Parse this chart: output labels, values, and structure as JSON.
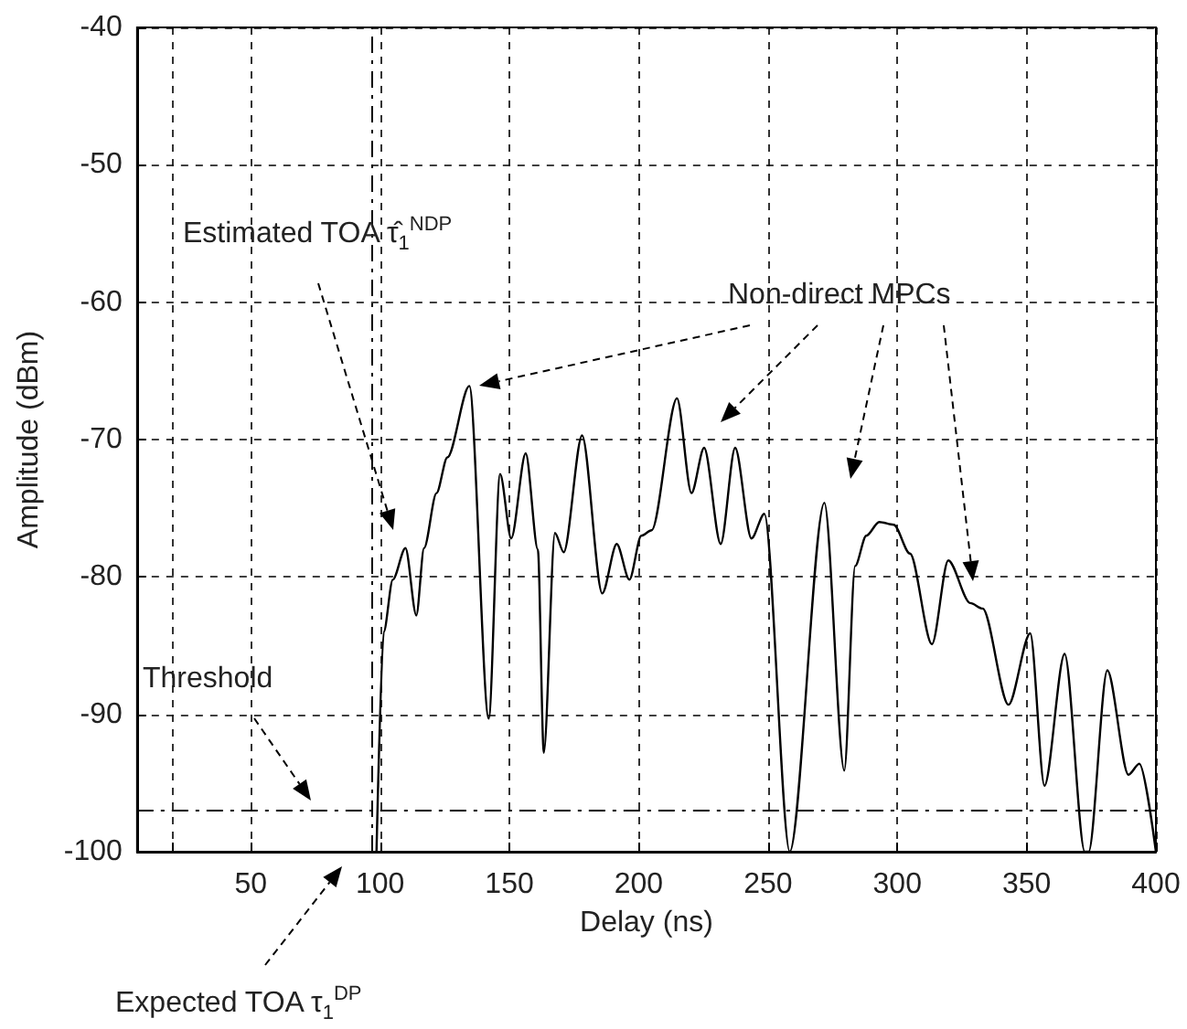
{
  "chart_data": {
    "type": "line",
    "xlabel": "Delay (ns)",
    "ylabel": "Amplitude (dBm)",
    "x": [
      98.6,
      101.4,
      104.9,
      109.8,
      114,
      117,
      121.8,
      126,
      134.5,
      142,
      146.4,
      150.7,
      156.3,
      161,
      163.3,
      167.6,
      171,
      178.1,
      185.9,
      191.5,
      196.4,
      201,
      205,
      214.8,
      220.4,
      225.3,
      231.7,
      237.3,
      243.6,
      248.6,
      258.4,
      271.8,
      279.5,
      283.7,
      288,
      293,
      298.6,
      304.9,
      313.4,
      319.7,
      328.2,
      333,
      343,
      351.4,
      356.9,
      364.7,
      372.5,
      374,
      381.2,
      389.4,
      393.6,
      400
    ],
    "series": [
      {
        "color": "#000000",
        "values": [
          -100,
          -84,
          -80.2,
          -77.9,
          -82.8,
          -77.9,
          -73.9,
          -71.3,
          -66.1,
          -90.3,
          -72.5,
          -77.2,
          -71,
          -78,
          -92.8,
          -76.8,
          -78.2,
          -69.7,
          -81.2,
          -77.6,
          -80.2,
          -77,
          -76.6,
          -67,
          -73.9,
          -70.6,
          -77.6,
          -70.6,
          -77.2,
          -75.4,
          -100,
          -74.6,
          -94.1,
          -79.2,
          -77,
          -76,
          -76.2,
          -78.3,
          -84.9,
          -78.8,
          -81.9,
          -82.3,
          -89.3,
          -84.1,
          -95.2,
          -85.6,
          -100,
          -100,
          -86.8,
          -94.4,
          -93.6,
          -100
        ]
      }
    ],
    "xlim": [
      6,
      400
    ],
    "xticks": [
      {
        "value": 20,
        "label": null
      },
      50,
      100,
      150,
      200,
      250,
      300,
      350,
      400
    ],
    "ylim": [
      -100,
      -40
    ],
    "yticks": [
      -100,
      -90,
      -80,
      -70,
      -60,
      -50,
      -40
    ],
    "grid": true,
    "marker": "none",
    "line_style": "solid",
    "ref_lines": [
      {
        "axis": "y",
        "value": -97,
        "color": "#000000",
        "line_style": "dashed"
      },
      {
        "axis": "x",
        "value": 97,
        "color": "#000000",
        "line_style": "dashed"
      }
    ],
    "annotations": [
      "Estimated TOA τ̂$_{1}$$^{NDP}$",
      "Non-direct MPCs",
      "Threshold",
      "Expected TOA τ$_{1}$$^{DP}$"
    ]
  }
}
